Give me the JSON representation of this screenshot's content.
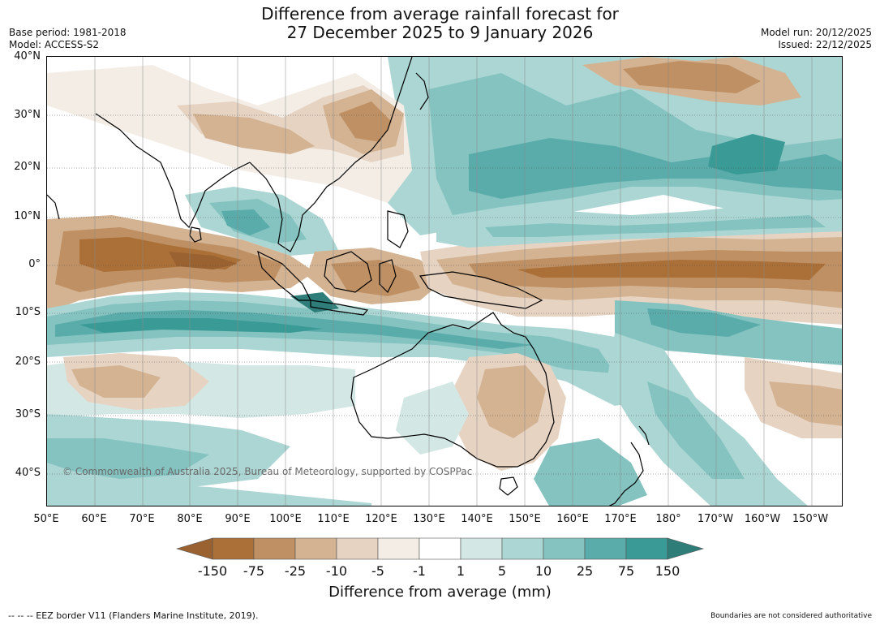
{
  "title_line1": "Difference from average rainfall forecast for",
  "title_line2": "27 December 2025 to 9 January 2026",
  "base_period": "Base period: 1981-2018",
  "model": "Model: ACCESS-S2",
  "model_run": "Model run: 20/12/2025",
  "issued": "Issued: 22/12/2025",
  "lat_labels": [
    "40°N",
    "30°N",
    "20°N",
    "10°N",
    "0°",
    "10°S",
    "20°S",
    "30°S",
    "40°S"
  ],
  "lon_labels": [
    "50°E",
    "60°E",
    "70°E",
    "80°E",
    "90°E",
    "100°E",
    "110°E",
    "120°E",
    "130°E",
    "140°E",
    "150°E",
    "160°E",
    "170°E",
    "180°",
    "170°W",
    "160°W",
    "150°W"
  ],
  "copyright": "© Commonwealth of Australia 2025, Bureau of Meteorology, supported by COSPPac",
  "colorbar": {
    "title": "Difference from average (mm)",
    "ticks": [
      "-150",
      "-75",
      "-25",
      "-10",
      "-5",
      "-1",
      "1",
      "5",
      "10",
      "25",
      "75",
      "150"
    ],
    "colors": [
      "#9a6230",
      "#aa7038",
      "#bf9063",
      "#d4b392",
      "#e6d3c2",
      "#f3ede6",
      "#ffffff",
      "#d3e7e5",
      "#abd6d3",
      "#84c3c0",
      "#5aacaa",
      "#3a9a96",
      "#2e7d79"
    ]
  },
  "eez_note": "--  --  -- EEZ border V11 (Flanders Marine Institute, 2019).",
  "disclaimer": "Boundaries are not considered authoritative"
}
